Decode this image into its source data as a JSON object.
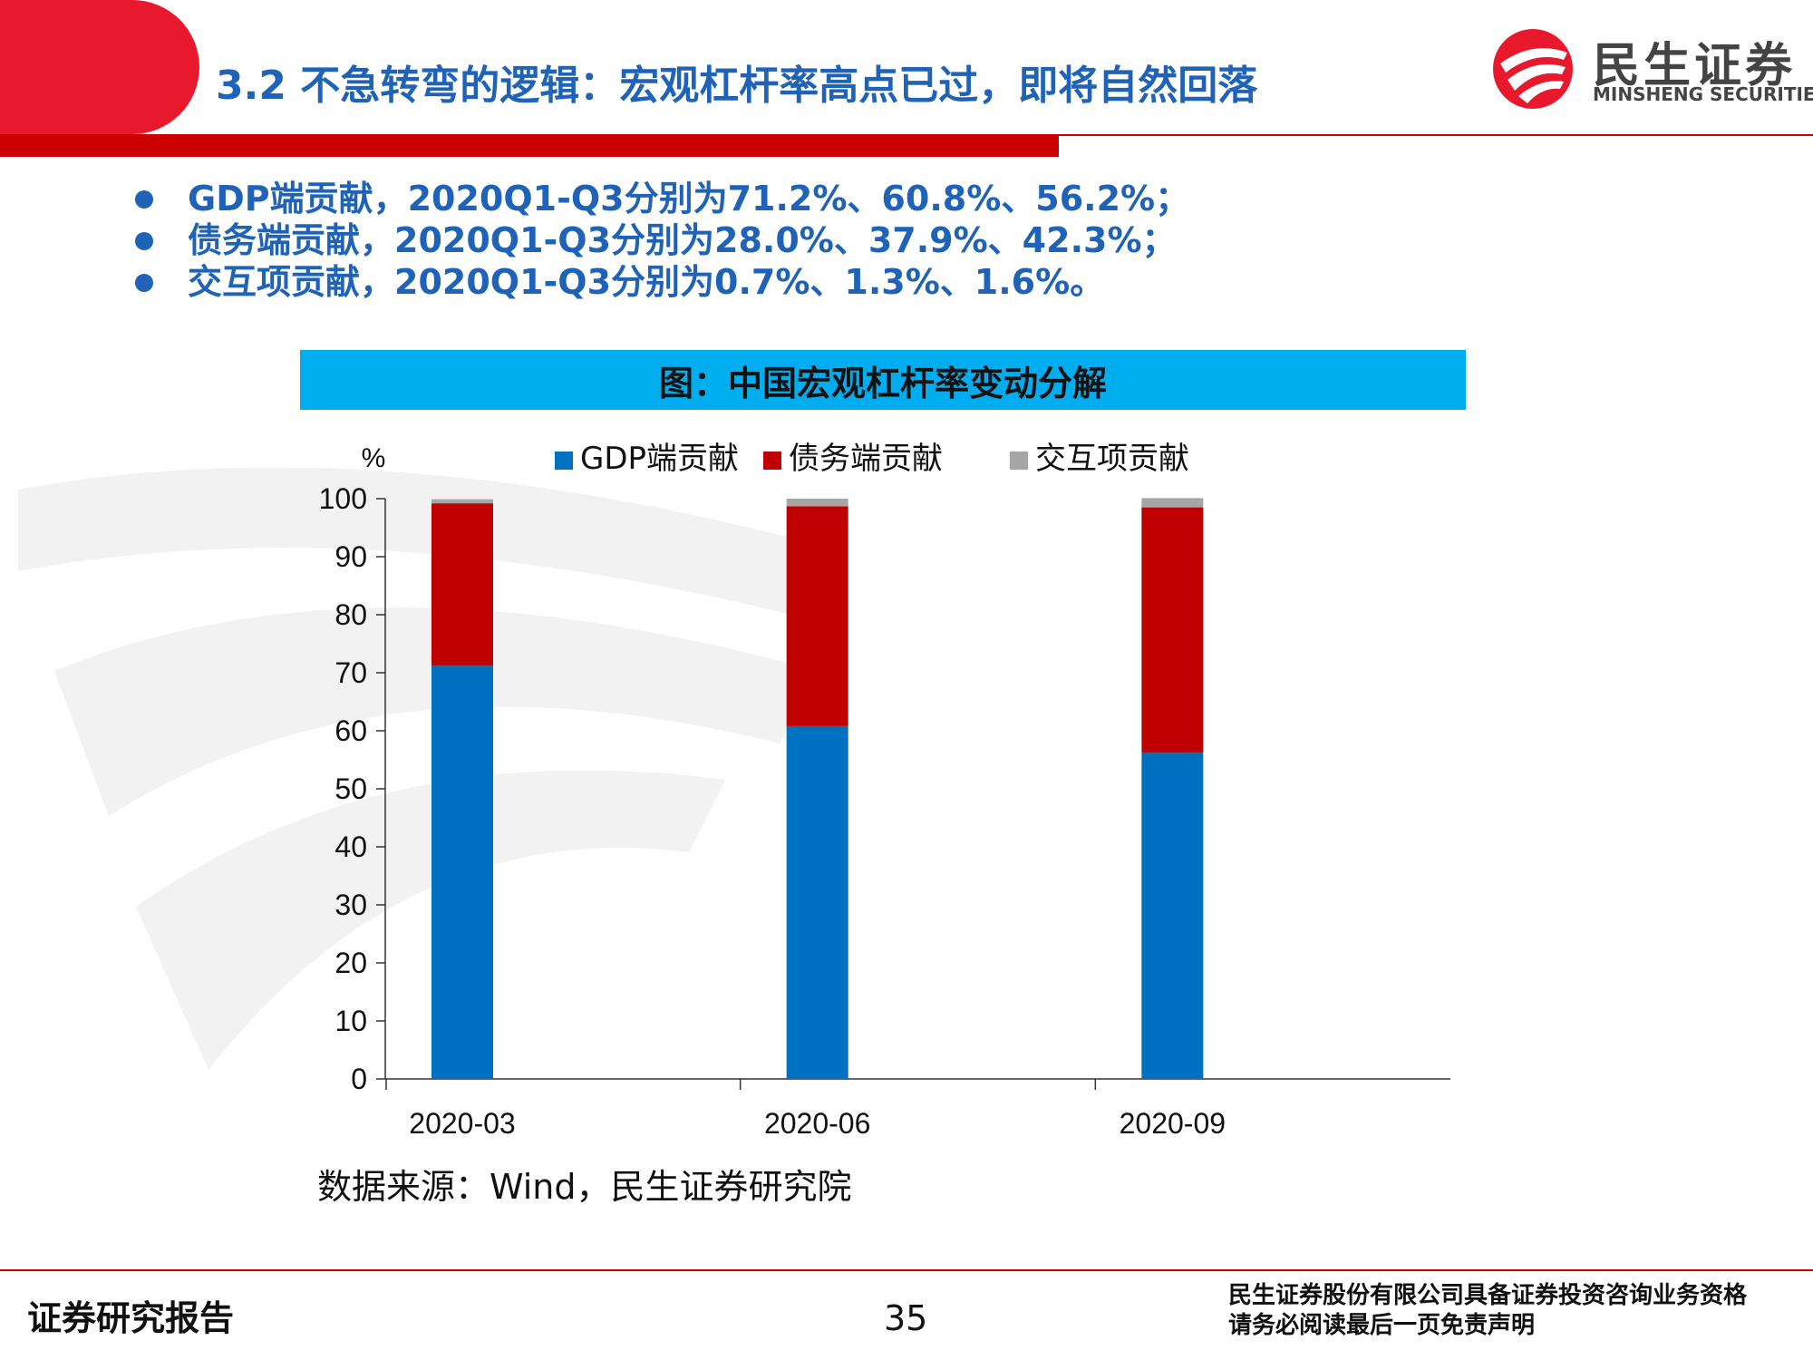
{
  "header": {
    "title": "3.2 不急转弯的逻辑：宏观杠杆率高点已过，即将自然回落",
    "logo_cn": "民生证券",
    "logo_en": "MINSHENG SECURITIES"
  },
  "bullets": [
    "GDP端贡献，2020Q1-Q3分别为71.2%、60.8%、56.2%；",
    "债务端贡献，2020Q1-Q3分别为28.0%、37.9%、42.3%；",
    "交互项贡献，2020Q1-Q3分别为0.7%、1.3%、1.6%。"
  ],
  "chart_title": "图：中国宏观杠杆率变动分解",
  "chart_data": {
    "type": "bar",
    "stacked": true,
    "categories": [
      "2020-03",
      "2020-06",
      "2020-09"
    ],
    "series": [
      {
        "name": "GDP端贡献",
        "values": [
          71.2,
          60.8,
          56.2
        ],
        "color": "#0070c0"
      },
      {
        "name": "债务端贡献",
        "values": [
          28.0,
          37.9,
          42.3
        ],
        "color": "#c00000"
      },
      {
        "name": "交互项贡献",
        "values": [
          0.7,
          1.3,
          1.6
        ],
        "color": "#a6a6a6"
      }
    ],
    "ylabel": "%",
    "ylim": [
      0,
      100
    ],
    "yticks": [
      0,
      10,
      20,
      30,
      40,
      50,
      60,
      70,
      80,
      90,
      100
    ],
    "legend": "top",
    "grid": false
  },
  "source": "数据来源：Wind，民生证券研究院",
  "footer": {
    "left": "证券研究报告",
    "page": "35",
    "right_line1": "民生证券股份有限公司具备证券投资咨询业务资格",
    "right_line2": "请务必阅读最后一页免责声明"
  },
  "colors": {
    "brand_red": "#e8192c",
    "bar_red": "#cc0000",
    "title_blue": "#1f63b8",
    "chart_title_bg": "#00aeef"
  }
}
